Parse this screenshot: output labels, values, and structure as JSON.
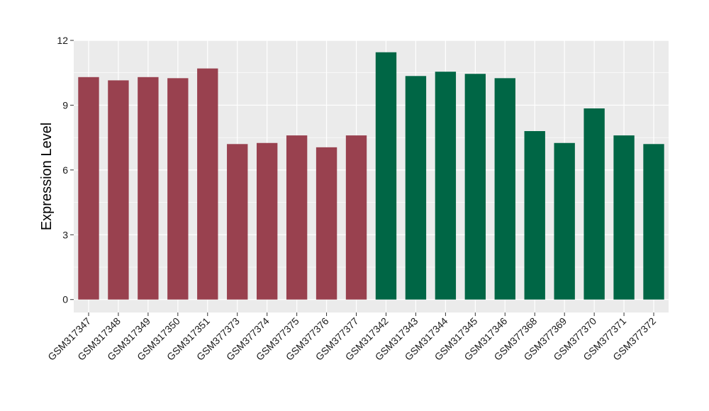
{
  "chart_data": {
    "type": "bar",
    "title": "",
    "xlabel": "",
    "ylabel": "Expression Level",
    "ylim": [
      -0.6,
      12
    ],
    "yticks": [
      0,
      3,
      6,
      9,
      12
    ],
    "grid": true,
    "legend": "none",
    "panel_color": "#ebebeb",
    "grid_color": "#ffffff",
    "categories": [
      "GSM317347",
      "GSM317348",
      "GSM317349",
      "GSM317350",
      "GSM317351",
      "GSM377373",
      "GSM377374",
      "GSM377375",
      "GSM377376",
      "GSM377377",
      "GSM317342",
      "GSM317343",
      "GSM317344",
      "GSM317345",
      "GSM317346",
      "GSM377368",
      "GSM377369",
      "GSM377370",
      "GSM377371",
      "GSM377372"
    ],
    "values": [
      10.3,
      10.15,
      10.3,
      10.25,
      10.7,
      7.2,
      7.25,
      7.6,
      7.05,
      7.6,
      11.45,
      10.35,
      10.55,
      10.45,
      10.25,
      7.8,
      7.25,
      8.85,
      7.6,
      7.2
    ],
    "bar_colors": [
      "#99414f",
      "#99414f",
      "#99414f",
      "#99414f",
      "#99414f",
      "#99414f",
      "#99414f",
      "#99414f",
      "#99414f",
      "#99414f",
      "#006645",
      "#006645",
      "#006645",
      "#006645",
      "#006645",
      "#006645",
      "#006645",
      "#006645",
      "#006645",
      "#006645"
    ]
  }
}
